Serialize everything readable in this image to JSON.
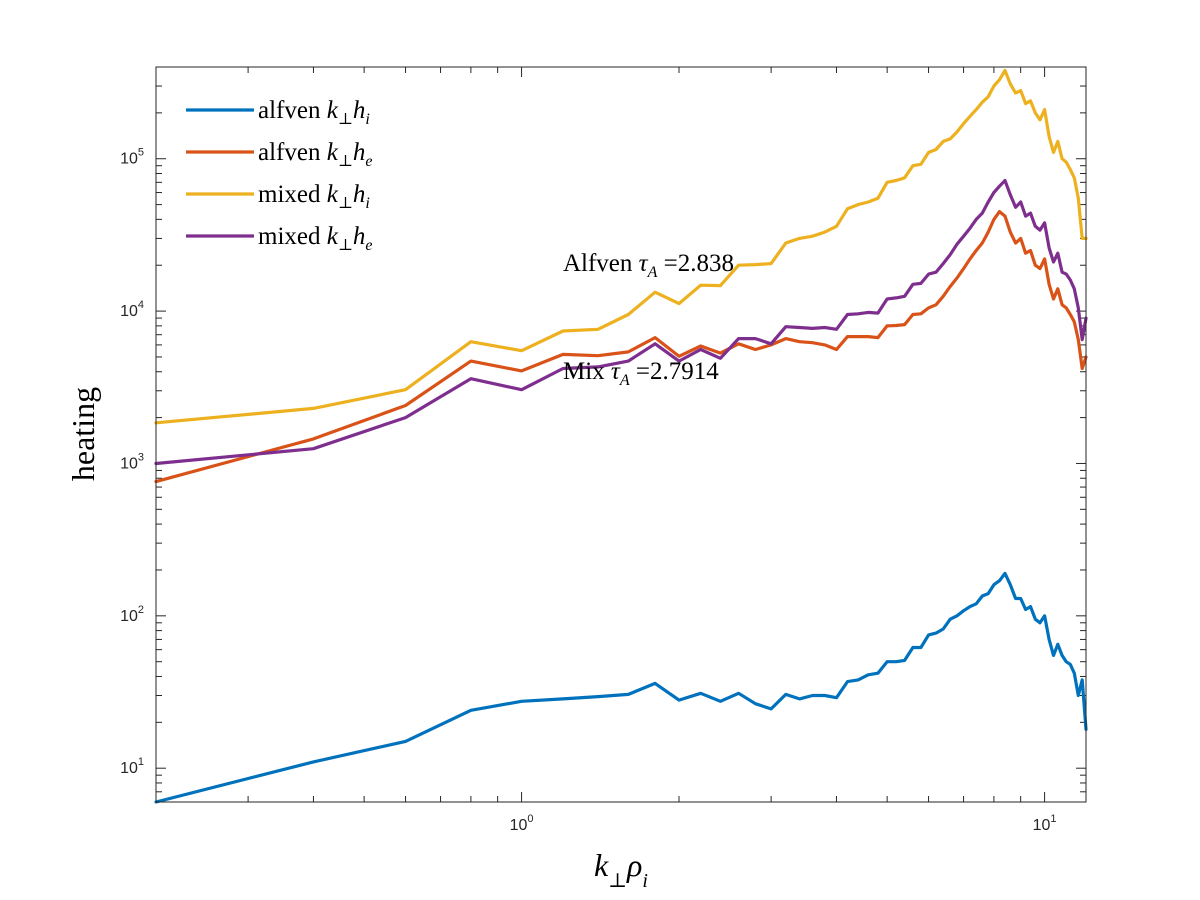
{
  "chart_data": {
    "type": "line",
    "title": "",
    "xlabel": "k⊥ρi",
    "ylabel": "heating",
    "x_scale": "log",
    "y_scale": "log",
    "xlim": [
      0.2,
      12
    ],
    "ylim": [
      6,
      400000
    ],
    "grid": false,
    "legend_position": "top-left",
    "x_ticks": [
      {
        "value": 1,
        "base": "10",
        "exp": "0"
      },
      {
        "value": 10,
        "base": "10",
        "exp": "1"
      }
    ],
    "y_ticks": [
      {
        "value": 10,
        "base": "10",
        "exp": "1"
      },
      {
        "value": 100,
        "base": "10",
        "exp": "2"
      },
      {
        "value": 1000,
        "base": "10",
        "exp": "3"
      },
      {
        "value": 10000,
        "base": "10",
        "exp": "4"
      },
      {
        "value": 100000,
        "base": "10",
        "exp": "5"
      }
    ],
    "x": [
      0.2,
      0.4,
      0.6,
      0.8,
      1.0,
      1.2,
      1.4,
      1.6,
      1.8,
      2.0,
      2.2,
      2.4,
      2.6,
      2.8,
      3.0,
      3.2,
      3.4,
      3.6,
      3.8,
      4.0,
      4.2,
      4.4,
      4.6,
      4.8,
      5.0,
      5.2,
      5.4,
      5.6,
      5.8,
      6.0,
      6.2,
      6.4,
      6.6,
      6.8,
      7.0,
      7.2,
      7.4,
      7.6,
      7.8,
      8.0,
      8.2,
      8.4,
      8.6,
      8.8,
      9.0,
      9.2,
      9.4,
      9.6,
      9.8,
      10.0,
      10.2,
      10.4,
      10.6,
      10.8,
      11.0,
      11.2,
      11.4,
      11.6,
      11.8,
      12.0
    ],
    "series": [
      {
        "name": "alfven k⊥hi",
        "legend_base": "alfven",
        "legend_math": "h",
        "legend_sub": "i",
        "color": "#0072BD",
        "values": [
          6,
          11,
          15,
          24,
          27.5,
          28.5,
          29.5,
          30.5,
          36,
          28,
          31,
          27.5,
          31,
          26.5,
          24.5,
          30.5,
          28.5,
          30,
          30,
          29,
          37,
          38,
          41,
          42,
          50,
          50,
          51,
          62,
          62,
          75,
          77,
          82,
          95,
          100,
          108,
          115,
          120,
          135,
          140,
          160,
          170,
          190,
          160,
          130,
          130,
          110,
          115,
          95,
          90,
          100,
          70,
          55,
          65,
          55,
          50,
          48,
          42,
          30,
          38,
          18
        ]
      },
      {
        "name": "alfven k⊥he",
        "legend_base": "alfven",
        "legend_math": "h",
        "legend_sub": "e",
        "color": "#D95319",
        "values": [
          760,
          1450,
          2400,
          4700,
          4050,
          5200,
          5100,
          5400,
          6700,
          5050,
          5900,
          5300,
          6100,
          5600,
          6000,
          6600,
          6300,
          6200,
          6000,
          5600,
          6800,
          6800,
          6800,
          6700,
          8000,
          8050,
          8150,
          9500,
          9600,
          10500,
          11000,
          12500,
          14500,
          16500,
          19000,
          22000,
          25000,
          28000,
          33000,
          40000,
          45000,
          42000,
          33000,
          28000,
          30000,
          24000,
          25000,
          20000,
          19000,
          22000,
          15000,
          12000,
          14000,
          11000,
          10500,
          9500,
          8500,
          6500,
          4200,
          5000
        ]
      },
      {
        "name": "mixed k⊥hi",
        "legend_base": "mixed",
        "legend_math": "h",
        "legend_sub": "i",
        "color": "#EDB120",
        "values": [
          1850,
          2300,
          3050,
          6300,
          5500,
          7400,
          7600,
          9500,
          13300,
          11200,
          14800,
          14700,
          20000,
          20200,
          20500,
          28000,
          30000,
          31000,
          33000,
          36000,
          47000,
          50000,
          52000,
          55000,
          70000,
          72000,
          75000,
          90000,
          92000,
          110000,
          115000,
          130000,
          135000,
          150000,
          170000,
          190000,
          210000,
          235000,
          255000,
          300000,
          330000,
          380000,
          310000,
          270000,
          280000,
          230000,
          240000,
          200000,
          180000,
          210000,
          140000,
          110000,
          130000,
          100000,
          95000,
          85000,
          75000,
          55000,
          30000,
          30000
        ]
      },
      {
        "name": "mixed k⊥he",
        "legend_base": "mixed",
        "legend_math": "h",
        "legend_sub": "e",
        "color": "#7E2F8E",
        "values": [
          1000,
          1250,
          2000,
          3600,
          3050,
          4200,
          4300,
          4700,
          6100,
          4700,
          5600,
          4900,
          6600,
          6600,
          6100,
          7900,
          7800,
          7700,
          7800,
          7600,
          9500,
          9600,
          9800,
          9700,
          12000,
          12200,
          12500,
          15000,
          15200,
          17500,
          18000,
          20500,
          23500,
          27500,
          31000,
          35000,
          40000,
          44000,
          52000,
          60000,
          66000,
          72000,
          58000,
          48000,
          52000,
          42000,
          44000,
          36000,
          34000,
          38000,
          26000,
          21000,
          24000,
          18000,
          17500,
          16000,
          14000,
          10500,
          6500,
          9000
        ]
      }
    ],
    "annotations": [
      {
        "prefix": "Alfven",
        "symbol": "τ",
        "sub": "A",
        "value": "=2.838",
        "x": 1.2,
        "y": 21000
      },
      {
        "prefix": "Mix",
        "symbol": "τ",
        "sub": "A",
        "value": "=2.7914",
        "x": 1.2,
        "y": 4100
      }
    ]
  }
}
